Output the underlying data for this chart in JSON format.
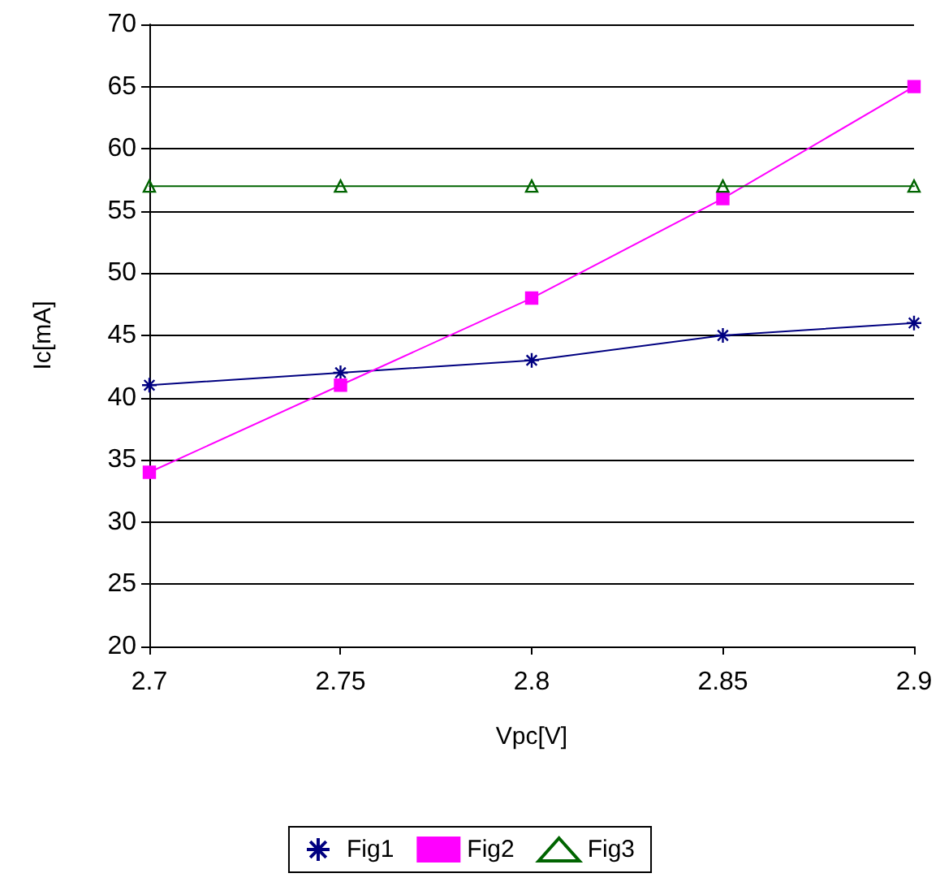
{
  "chart_data": {
    "type": "line",
    "xlabel": "Vpc[V]",
    "ylabel": "Ic[mA]",
    "x": [
      2.7,
      2.75,
      2.8,
      2.85,
      2.9
    ],
    "series": [
      {
        "name": "Fig1",
        "color": "#000080",
        "marker": "cross",
        "values": [
          41,
          42,
          43,
          45,
          46
        ]
      },
      {
        "name": "Fig2",
        "color": "#ff00ff",
        "marker": "square",
        "values": [
          34,
          41,
          48,
          56,
          65
        ]
      },
      {
        "name": "Fig3",
        "color": "#006400",
        "marker": "triangle",
        "values": [
          57,
          57,
          57,
          57,
          57
        ]
      }
    ],
    "xlim": [
      2.7,
      2.9
    ],
    "xticks": [
      2.7,
      2.75,
      2.8,
      2.85,
      2.9
    ],
    "ylim": [
      20,
      70
    ],
    "yticks": [
      20,
      25,
      30,
      35,
      40,
      45,
      50,
      55,
      60,
      65,
      70
    ],
    "grid": "y",
    "legend": "bottom",
    "line_style": "solid"
  }
}
